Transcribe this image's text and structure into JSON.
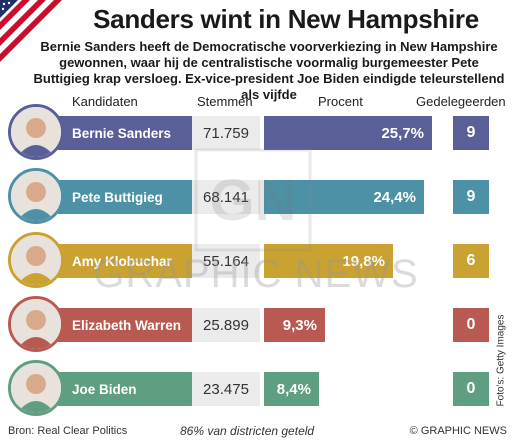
{
  "title": "Sanders wint in New Hampshire",
  "intro": "Bernie Sanders heeft de Democratische voorverkiezing in New Hampshire gewonnen, waar hij de centralistische voormalig burgemeester Pete Buttigieg krap versloeg. Ex-vice-president Joe Biden eindigde teleurstellend als vijfde",
  "headers": {
    "candidates": "Kandidaten",
    "votes": "Stemmen",
    "percent": "Procent",
    "delegates": "Gedelegeerden"
  },
  "chart_data": {
    "type": "bar",
    "categories": [
      "Bernie Sanders",
      "Pete Buttigieg",
      "Amy Klobuchar",
      "Elizabeth Warren",
      "Joe Biden"
    ],
    "votes": [
      "71.759",
      "68.141",
      "55.164",
      "25.899",
      "23.475"
    ],
    "values": [
      25.7,
      24.4,
      19.8,
      9.3,
      8.4
    ],
    "value_labels": [
      "25,7%",
      "24,4%",
      "19,8%",
      "9,3%",
      "8,4%"
    ],
    "delegates": [
      9,
      9,
      6,
      0,
      0
    ],
    "colors": [
      "#5a5f97",
      "#4c91a6",
      "#c9a232",
      "#b85a52",
      "#5f9e80"
    ],
    "xlim": [
      0,
      25.7
    ]
  },
  "footer": {
    "source": "Bron: Real Clear Politics",
    "note": "86% van districten geteld",
    "copyright": "© GRAPHIC NEWS"
  },
  "photo_credit": "Foto's: Getty Images",
  "watermark": "GRAPHIC NEWS"
}
